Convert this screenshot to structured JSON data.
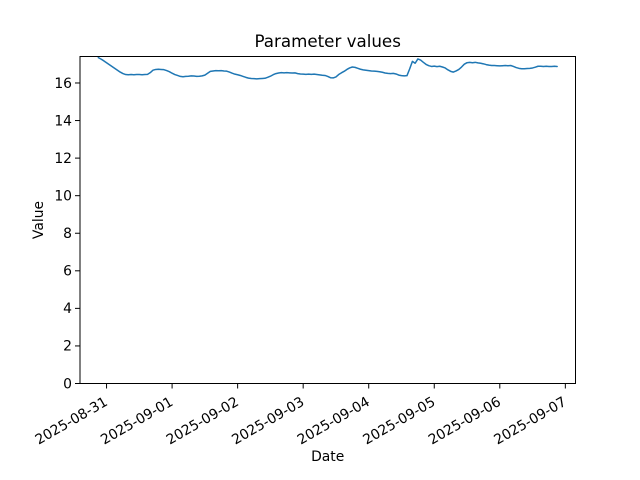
{
  "chart_data": {
    "type": "line",
    "title": "Parameter values",
    "xlabel": "Date",
    "ylabel": "Value",
    "legend": null,
    "grid": false,
    "line_color": "#1f77b4",
    "background_color": "#ffffff",
    "y_ticks": [
      0,
      2,
      4,
      6,
      8,
      10,
      12,
      14,
      16
    ],
    "ylim": [
      0,
      17.41
    ],
    "x_tick_labels": [
      "2025-08-31",
      "2025-09-01",
      "2025-09-02",
      "2025-09-03",
      "2025-09-04",
      "2025-09-05",
      "2025-09-06",
      "2025-09-07"
    ],
    "x_start_estimate": "2025-08-30 21:00",
    "x_interval_hours": 1,
    "first_tick_offset_hours": 3,
    "tick_interval_hours": 24,
    "x_margin_frac": 0.04,
    "values": [
      17.35,
      17.27,
      17.18,
      17.08,
      16.98,
      16.88,
      16.78,
      16.68,
      16.58,
      16.5,
      16.45,
      16.44,
      16.45,
      16.44,
      16.45,
      16.45,
      16.44,
      16.45,
      16.46,
      16.55,
      16.68,
      16.72,
      16.73,
      16.72,
      16.71,
      16.66,
      16.6,
      16.52,
      16.45,
      16.4,
      16.35,
      16.33,
      16.35,
      16.36,
      16.38,
      16.37,
      16.35,
      16.36,
      16.38,
      16.42,
      16.52,
      16.62,
      16.64,
      16.66,
      16.65,
      16.66,
      16.64,
      16.63,
      16.58,
      16.52,
      16.47,
      16.44,
      16.4,
      16.35,
      16.3,
      16.26,
      16.24,
      16.23,
      16.22,
      16.23,
      16.24,
      16.25,
      16.3,
      16.36,
      16.44,
      16.5,
      16.53,
      16.55,
      16.54,
      16.55,
      16.54,
      16.53,
      16.54,
      16.5,
      16.48,
      16.47,
      16.46,
      16.47,
      16.46,
      16.47,
      16.45,
      16.43,
      16.41,
      16.4,
      16.35,
      16.28,
      16.27,
      16.32,
      16.45,
      16.54,
      16.62,
      16.72,
      16.8,
      16.85,
      16.83,
      16.78,
      16.73,
      16.7,
      16.68,
      16.66,
      16.64,
      16.63,
      16.62,
      16.6,
      16.57,
      16.53,
      16.51,
      16.5,
      16.51,
      16.48,
      16.42,
      16.39,
      16.38,
      16.39,
      16.75,
      17.15,
      17.05,
      17.28,
      17.22,
      17.1,
      16.99,
      16.92,
      16.88,
      16.9,
      16.87,
      16.89,
      16.85,
      16.8,
      16.7,
      16.62,
      16.58,
      16.64,
      16.72,
      16.85,
      17.0,
      17.08,
      17.1,
      17.08,
      17.1,
      17.07,
      17.05,
      17.02,
      16.98,
      16.95,
      16.93,
      16.93,
      16.92,
      16.91,
      16.92,
      16.93,
      16.92,
      16.93,
      16.88,
      16.82,
      16.78,
      16.76,
      16.76,
      16.77,
      16.78,
      16.8,
      16.84,
      16.89,
      16.89,
      16.88,
      16.89,
      16.88,
      16.88,
      16.89,
      16.88
    ]
  }
}
